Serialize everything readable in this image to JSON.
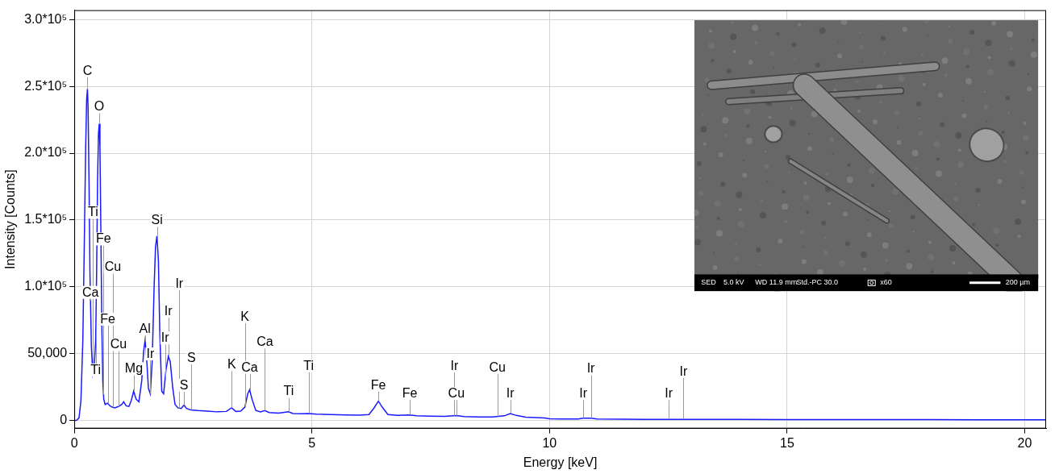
{
  "chart_data": {
    "type": "line",
    "x_label": "Energy [keV]",
    "y_label": "Intensity [Counts]",
    "color": "#1a1aff",
    "grid": true,
    "xlim": [
      0,
      20.45
    ],
    "ylim": [
      -6000,
      307000
    ],
    "xticks": [
      0,
      5,
      10,
      15,
      20
    ],
    "yticks": [
      0,
      {
        "value": 50000,
        "label": "50,000"
      },
      {
        "value": 100000,
        "label": "1.0*10⁵"
      },
      {
        "value": 150000,
        "label": "1.5*10⁵"
      },
      {
        "value": 200000,
        "label": "2.0*10⁵"
      },
      {
        "value": 250000,
        "label": "2.5*10⁵"
      },
      {
        "value": 300000,
        "label": "3.0*10⁵"
      }
    ],
    "x": [
      0,
      0.05,
      0.1,
      0.14,
      0.18,
      0.21,
      0.24,
      0.26,
      0.277,
      0.29,
      0.31,
      0.33,
      0.36,
      0.39,
      0.42,
      0.45,
      0.47,
      0.49,
      0.51,
      0.525,
      0.54,
      0.56,
      0.58,
      0.6,
      0.62,
      0.65,
      0.7,
      0.75,
      0.8,
      0.85,
      0.93,
      1.0,
      1.04,
      1.09,
      1.15,
      1.2,
      1.25,
      1.3,
      1.36,
      1.42,
      1.46,
      1.49,
      1.52,
      1.56,
      1.6,
      1.64,
      1.68,
      1.71,
      1.74,
      1.77,
      1.8,
      1.84,
      1.88,
      1.93,
      1.98,
      2.02,
      2.07,
      2.12,
      2.18,
      2.25,
      2.31,
      2.36,
      2.45,
      2.6,
      2.8,
      3.0,
      3.2,
      3.31,
      3.4,
      3.5,
      3.59,
      3.65,
      3.69,
      3.74,
      3.82,
      3.92,
      4.01,
      4.1,
      4.3,
      4.51,
      4.6,
      4.8,
      4.93,
      5.1,
      5.4,
      5.7,
      6.0,
      6.2,
      6.3,
      6.4,
      6.48,
      6.6,
      6.8,
      7.06,
      7.2,
      7.5,
      7.8,
      8.04,
      8.2,
      8.5,
      8.8,
      9.05,
      9.175,
      9.3,
      9.5,
      9.7,
      9.9,
      10.0,
      10.3,
      10.6,
      10.71,
      10.87,
      11.0,
      11.5,
      12.0,
      12.5,
      13.0,
      14.0,
      15.0,
      16.0,
      17.0,
      18.0,
      19.0,
      20.0,
      20.45
    ],
    "values": [
      0,
      200,
      2000,
      15000,
      60000,
      130000,
      205000,
      240000,
      248000,
      235000,
      180000,
      110000,
      55000,
      35000,
      40000,
      60000,
      110000,
      180000,
      215000,
      222000,
      205000,
      140000,
      70000,
      30000,
      16000,
      12000,
      13000,
      11000,
      10000,
      9500,
      10500,
      12000,
      14000,
      11000,
      10500,
      15000,
      22000,
      16000,
      14000,
      30000,
      52000,
      60000,
      48000,
      24000,
      20000,
      45000,
      100000,
      130000,
      138000,
      120000,
      65000,
      22000,
      20000,
      38000,
      48000,
      44000,
      25000,
      12000,
      9500,
      9000,
      11500,
      9000,
      8000,
      7500,
      7000,
      6500,
      6800,
      9500,
      6800,
      7000,
      10000,
      20000,
      23000,
      16000,
      7500,
      6500,
      7500,
      6000,
      5500,
      6500,
      5200,
      5000,
      5200,
      4700,
      4400,
      4200,
      4000,
      4500,
      9000,
      14500,
      10000,
      4500,
      3800,
      4200,
      3500,
      3300,
      3100,
      3700,
      2900,
      2700,
      2600,
      3500,
      5200,
      3800,
      2500,
      2200,
      1900,
      1300,
      1200,
      1100,
      1800,
      1800,
      1100,
      950,
      900,
      900,
      850,
      800,
      750,
      700,
      650,
      650,
      600,
      600,
      580
    ],
    "annotations": [
      {
        "text": "C",
        "x": 0.277,
        "y": 257000
      },
      {
        "text": "O",
        "x": 0.525,
        "y": 230000
      },
      {
        "text": "Ti",
        "x": 0.395,
        "y": 151000
      },
      {
        "text": "Fe",
        "x": 0.615,
        "y": 131000
      },
      {
        "text": "Cu",
        "x": 0.811,
        "y": 110000
      },
      {
        "text": "Ca",
        "x": 0.341,
        "y": 91000
      },
      {
        "text": "Fe",
        "x": 0.705,
        "y": 71000
      },
      {
        "text": "Cu",
        "x": 0.93,
        "y": 52000
      },
      {
        "text": "Ti",
        "x": 0.452,
        "y": 33000
      },
      {
        "text": "Mg",
        "x": 1.254,
        "y": 34000
      },
      {
        "text": "Al",
        "x": 1.487,
        "y": 64000
      },
      {
        "text": "Ir",
        "x": 1.6,
        "y": 45000
      },
      {
        "text": "Si",
        "x": 1.74,
        "y": 145000
      },
      {
        "text": "Ir",
        "x": 1.91,
        "y": 57000
      },
      {
        "text": "Ir",
        "x": 1.98,
        "y": 77000
      },
      {
        "text": "Ir",
        "x": 2.21,
        "y": 97500
      },
      {
        "text": "S",
        "x": 2.31,
        "y": 21600
      },
      {
        "text": "S",
        "x": 2.464,
        "y": 42000
      },
      {
        "text": "K",
        "x": 3.314,
        "y": 37000
      },
      {
        "text": "K",
        "x": 3.59,
        "y": 73000
      },
      {
        "text": "Ca",
        "x": 3.69,
        "y": 35000
      },
      {
        "text": "Ca",
        "x": 4.01,
        "y": 54000
      },
      {
        "text": "Ti",
        "x": 4.51,
        "y": 17000
      },
      {
        "text": "Ti",
        "x": 4.93,
        "y": 36000
      },
      {
        "text": "Fe",
        "x": 6.4,
        "y": 21600
      },
      {
        "text": "Fe",
        "x": 7.06,
        "y": 15400
      },
      {
        "text": "Ir",
        "x": 8.0,
        "y": 36000
      },
      {
        "text": "Cu",
        "x": 8.04,
        "y": 15400
      },
      {
        "text": "Cu",
        "x": 8.905,
        "y": 35000
      },
      {
        "text": "Ir",
        "x": 9.175,
        "y": 15400
      },
      {
        "text": "Ir",
        "x": 10.71,
        "y": 15400
      },
      {
        "text": "Ir",
        "x": 10.87,
        "y": 34000
      },
      {
        "text": "Ir",
        "x": 12.51,
        "y": 15400
      },
      {
        "text": "Ir",
        "x": 12.82,
        "y": 32000
      }
    ]
  },
  "inset": {
    "info": [
      "SED",
      "5.0 kV",
      "WD 11.9 mm",
      "Std.-PC 30.0",
      "x60"
    ],
    "scale_bar": "200 µm"
  }
}
